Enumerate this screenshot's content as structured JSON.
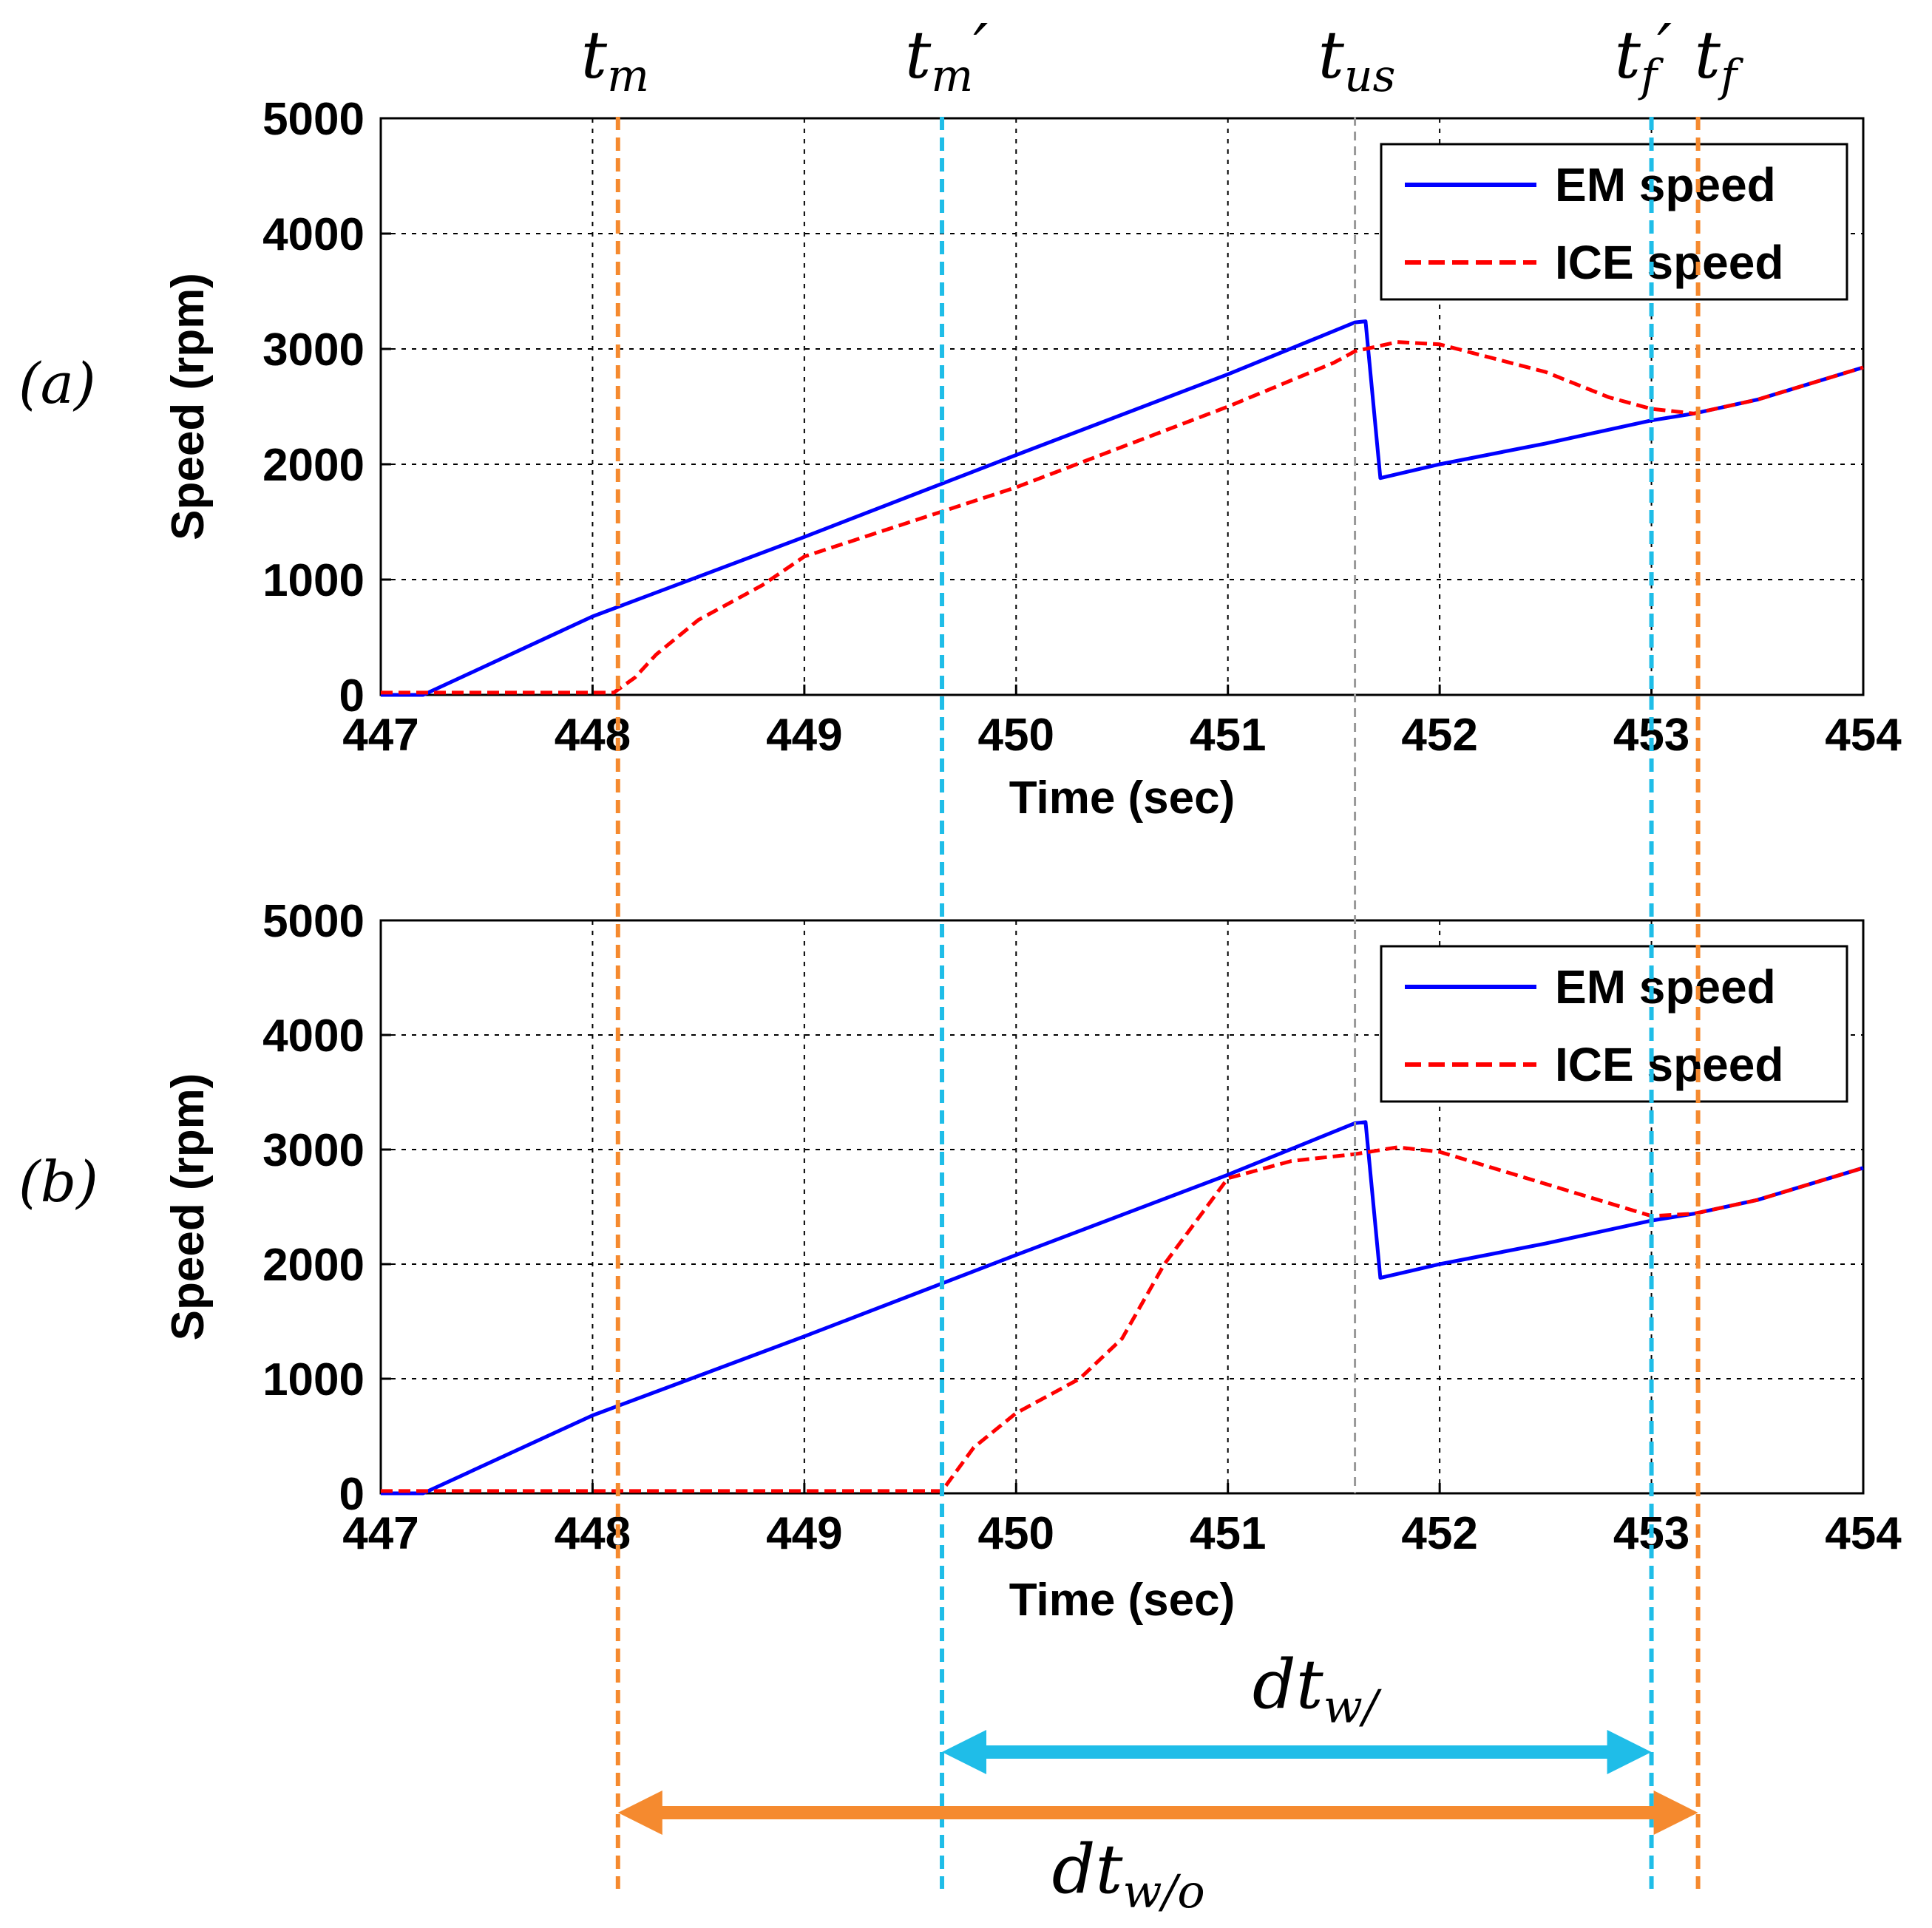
{
  "chart_data": [
    {
      "type": "line",
      "panel_label": "(a)",
      "xlabel": "Time (sec)",
      "ylabel": "Speed (rpm)",
      "xlim": [
        447,
        454
      ],
      "ylim": [
        0,
        5000
      ],
      "xticks": [
        447,
        448,
        449,
        450,
        451,
        452,
        453,
        454
      ],
      "yticks": [
        0,
        1000,
        2000,
        3000,
        4000,
        5000
      ],
      "grid": true,
      "legend": "top-right",
      "series": [
        {
          "name": "EM speed",
          "color": "#0000ff",
          "style": "solid",
          "points": [
            [
              447.0,
              0
            ],
            [
              447.2,
              0
            ],
            [
              448.0,
              680
            ],
            [
              449.0,
              1370
            ],
            [
              450.0,
              2080
            ],
            [
              451.0,
              2780
            ],
            [
              451.6,
              3230
            ],
            [
              451.65,
              3240
            ],
            [
              451.72,
              1880
            ],
            [
              452.0,
              2000
            ],
            [
              452.5,
              2180
            ],
            [
              453.0,
              2380
            ],
            [
              453.2,
              2440
            ],
            [
              453.5,
              2560
            ],
            [
              454.0,
              2840
            ]
          ]
        },
        {
          "name": "ICE speed",
          "color": "#ff0000",
          "style": "dashed",
          "points": [
            [
              447.0,
              20
            ],
            [
              448.1,
              20
            ],
            [
              448.2,
              150
            ],
            [
              448.3,
              350
            ],
            [
              448.5,
              650
            ],
            [
              448.8,
              950
            ],
            [
              449.0,
              1200
            ],
            [
              449.5,
              1500
            ],
            [
              450.0,
              1800
            ],
            [
              450.5,
              2150
            ],
            [
              451.0,
              2500
            ],
            [
              451.5,
              2880
            ],
            [
              451.6,
              2980
            ],
            [
              451.8,
              3060
            ],
            [
              452.0,
              3040
            ],
            [
              452.5,
              2800
            ],
            [
              452.8,
              2580
            ],
            [
              453.0,
              2480
            ],
            [
              453.2,
              2440
            ],
            [
              453.5,
              2560
            ],
            [
              454.0,
              2840
            ]
          ]
        }
      ],
      "annotations": {
        "tm": 448.12,
        "tm_prime": 449.65,
        "tus": 451.6,
        "tf_prime": 453.0,
        "tf": 453.22
      }
    },
    {
      "type": "line",
      "panel_label": "(b)",
      "xlabel": "Time (sec)",
      "ylabel": "Speed (rpm)",
      "xlim": [
        447,
        454
      ],
      "ylim": [
        0,
        5000
      ],
      "xticks": [
        447,
        448,
        449,
        450,
        451,
        452,
        453,
        454
      ],
      "yticks": [
        0,
        1000,
        2000,
        3000,
        4000,
        5000
      ],
      "grid": true,
      "legend": "top-right",
      "series": [
        {
          "name": "EM speed",
          "color": "#0000ff",
          "style": "solid",
          "points": [
            [
              447.0,
              0
            ],
            [
              447.2,
              0
            ],
            [
              448.0,
              680
            ],
            [
              449.0,
              1370
            ],
            [
              450.0,
              2080
            ],
            [
              451.0,
              2780
            ],
            [
              451.6,
              3230
            ],
            [
              451.65,
              3240
            ],
            [
              451.72,
              1880
            ],
            [
              452.0,
              2000
            ],
            [
              452.5,
              2180
            ],
            [
              453.0,
              2380
            ],
            [
              453.2,
              2440
            ],
            [
              453.5,
              2560
            ],
            [
              454.0,
              2840
            ]
          ]
        },
        {
          "name": "ICE speed",
          "color": "#ff0000",
          "style": "dashed",
          "points": [
            [
              447.0,
              20
            ],
            [
              449.65,
              20
            ],
            [
              449.8,
              400
            ],
            [
              450.0,
              700
            ],
            [
              450.3,
              1000
            ],
            [
              450.5,
              1350
            ],
            [
              450.7,
              2000
            ],
            [
              451.0,
              2750
            ],
            [
              451.3,
              2900
            ],
            [
              451.6,
              2960
            ],
            [
              451.8,
              3020
            ],
            [
              452.0,
              2980
            ],
            [
              452.5,
              2700
            ],
            [
              453.0,
              2420
            ],
            [
              453.2,
              2440
            ],
            [
              453.5,
              2560
            ],
            [
              454.0,
              2840
            ]
          ]
        }
      ]
    }
  ],
  "markers": {
    "tm": {
      "label": "t",
      "sub": "m",
      "prime": "",
      "color": "#f58a2f"
    },
    "tm_prime": {
      "label": "t",
      "sub": "m",
      "prime": "′",
      "color": "#1fbde8"
    },
    "tus": {
      "label": "t",
      "sub": "us",
      "prime": "",
      "color": "#999999"
    },
    "tf_prime": {
      "label": "t",
      "sub": "f",
      "prime": "′",
      "color": "#1fbde8"
    },
    "tf": {
      "label": "t",
      "sub": "f",
      "prime": "",
      "color": "#f58a2f"
    }
  },
  "intervals": {
    "dt_with": {
      "label": "dt",
      "sub": "w/",
      "color": "#1fbde8"
    },
    "dt_without": {
      "label": "dt",
      "sub": "w/o",
      "color": "#f58a2f"
    }
  }
}
